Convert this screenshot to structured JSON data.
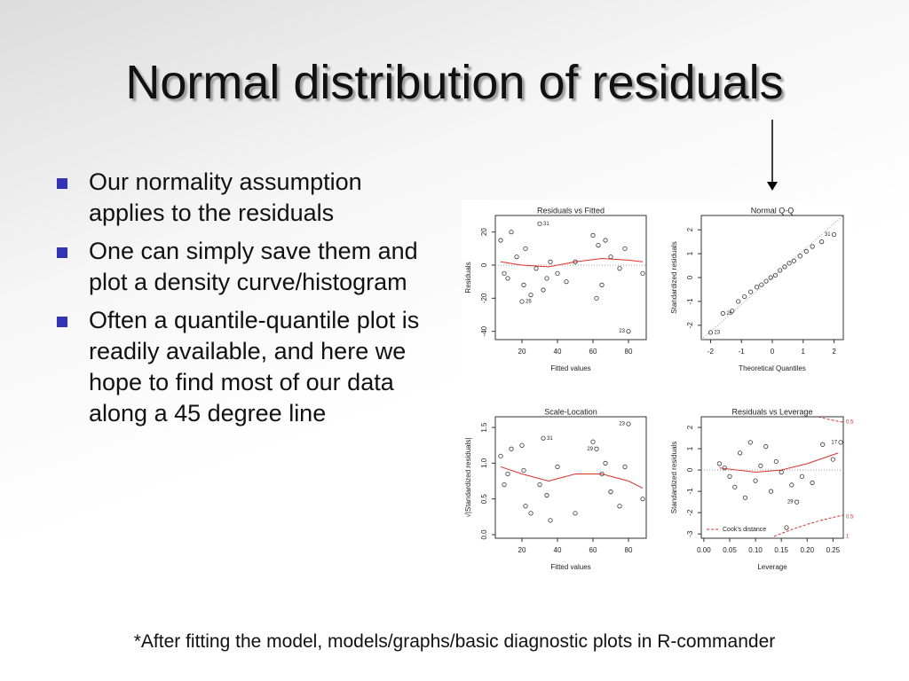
{
  "header": {
    "title": "Normal distribution of residuals"
  },
  "bullets": [
    "Our normality assumption applies to the residuals",
    "One can simply save them and plot a density curve/histogram",
    "Often a quantile-quantile plot is readily available, and here we hope to find most of our data along a 45 degree line"
  ],
  "footnote": "*After fitting the model, models/graphs/basic diagnostic plots in R-commander",
  "chart_data": [
    {
      "type": "scatter",
      "title": "Residuals vs Fitted",
      "xlabel": "Fitted values",
      "ylabel": "Residuals",
      "xlim": [
        5,
        90
      ],
      "xticks": [
        20,
        40,
        60,
        80
      ],
      "ylim": [
        -45,
        30
      ],
      "yticks": [
        -40,
        -20,
        0,
        20
      ],
      "x": [
        8,
        10,
        12,
        14,
        17,
        20,
        21,
        22,
        25,
        28,
        30,
        32,
        34,
        36,
        40,
        45,
        50,
        60,
        62,
        63,
        65,
        67,
        70,
        75,
        78,
        80,
        88
      ],
      "values": [
        15,
        -5,
        -8,
        20,
        5,
        -22,
        -12,
        10,
        -18,
        -2,
        25,
        -15,
        -8,
        2,
        -5,
        -10,
        2,
        18,
        -20,
        12,
        -12,
        15,
        5,
        -2,
        10,
        -40,
        -5
      ],
      "point_labels": [
        null,
        null,
        null,
        null,
        null,
        "26",
        null,
        null,
        null,
        null,
        "31",
        null,
        null,
        null,
        null,
        null,
        null,
        null,
        null,
        null,
        null,
        null,
        null,
        null,
        null,
        "23",
        null
      ],
      "line_x": [
        8,
        20,
        35,
        50,
        65,
        80,
        88
      ],
      "line_values": [
        2,
        0,
        -1,
        2,
        4,
        3,
        2
      ],
      "line_color": "#e0302a",
      "color": "#333333"
    },
    {
      "type": "scatter",
      "title": "Normal Q-Q",
      "xlabel": "Theoretical Quantiles",
      "ylabel": "Standardized residuals",
      "xlim": [
        -2.3,
        2.3
      ],
      "xticks": [
        -2,
        -1,
        0,
        1,
        2
      ],
      "ylim": [
        -2.6,
        2.6
      ],
      "yticks": [
        -2,
        -1,
        0,
        1,
        2
      ],
      "x": [
        -2.0,
        -1.6,
        -1.3,
        -1.1,
        -0.9,
        -0.7,
        -0.5,
        -0.35,
        -0.2,
        -0.05,
        0.1,
        0.25,
        0.4,
        0.55,
        0.7,
        0.9,
        1.1,
        1.3,
        1.6,
        2.0
      ],
      "values": [
        -2.3,
        -1.5,
        -1.4,
        -1.0,
        -0.8,
        -0.6,
        -0.4,
        -0.3,
        -0.15,
        0,
        0.1,
        0.3,
        0.45,
        0.6,
        0.7,
        0.9,
        1.1,
        1.3,
        1.5,
        1.8
      ],
      "point_labels": [
        "23",
        "26",
        null,
        null,
        null,
        null,
        null,
        null,
        null,
        null,
        null,
        null,
        null,
        null,
        null,
        null,
        null,
        null,
        null,
        "31"
      ],
      "line_x": [
        -2.3,
        2.3
      ],
      "line_values": [
        -2.6,
        2.6
      ],
      "line_color": "#999999",
      "color": "#333333"
    },
    {
      "type": "scatter",
      "title": "Scale-Location",
      "xlabel": "Fitted values",
      "ylabel": "√|Standardized residuals|",
      "xlim": [
        5,
        90
      ],
      "xticks": [
        20,
        40,
        60,
        80
      ],
      "ylim": [
        -0.05,
        1.65
      ],
      "yticks": [
        {
          "value": 0,
          "label": "0.0"
        },
        0.5,
        {
          "value": 1,
          "label": "1.0"
        },
        1.5
      ],
      "x": [
        8,
        10,
        12,
        14,
        20,
        21,
        22,
        25,
        30,
        32,
        34,
        36,
        40,
        50,
        60,
        62,
        65,
        67,
        70,
        75,
        78,
        80,
        88
      ],
      "values": [
        1.1,
        0.7,
        0.85,
        1.2,
        1.25,
        0.9,
        0.4,
        0.3,
        0.7,
        1.35,
        0.55,
        0.2,
        0.95,
        0.3,
        1.3,
        1.2,
        0.85,
        1.0,
        0.6,
        0.4,
        0.95,
        1.55,
        0.5
      ],
      "point_labels": [
        null,
        null,
        null,
        null,
        null,
        null,
        null,
        null,
        null,
        "31",
        null,
        null,
        null,
        null,
        null,
        "29",
        null,
        null,
        null,
        null,
        null,
        "23",
        null
      ],
      "line_x": [
        8,
        20,
        35,
        50,
        65,
        80,
        88
      ],
      "line_values": [
        0.95,
        0.85,
        0.75,
        0.85,
        0.85,
        0.75,
        0.65
      ],
      "line_color": "#e0302a",
      "color": "#333333"
    },
    {
      "type": "scatter",
      "title": "Residuals vs Leverage",
      "xlabel": "Leverage",
      "ylabel": "Standardized residuals",
      "xlim": [
        -0.005,
        0.27
      ],
      "xticks": [
        {
          "value": 0,
          "label": "0.00"
        },
        0.05,
        {
          "value": 0.1,
          "label": "0.10"
        },
        0.15,
        {
          "value": 0.2,
          "label": "0.20"
        },
        0.25
      ],
      "ylim": [
        -3.2,
        2.5
      ],
      "yticks": [
        -3,
        -2,
        -1,
        0,
        1,
        2
      ],
      "x": [
        0.03,
        0.04,
        0.05,
        0.06,
        0.07,
        0.08,
        0.09,
        0.1,
        0.11,
        0.12,
        0.13,
        0.14,
        0.15,
        0.17,
        0.18,
        0.19,
        0.21,
        0.23,
        0.25,
        0.265,
        0.16
      ],
      "values": [
        0.3,
        0.1,
        -0.3,
        -0.8,
        0.8,
        -1.3,
        1.3,
        -0.5,
        0.2,
        1.1,
        -1.0,
        0.4,
        -0.1,
        -0.7,
        -1.5,
        -0.3,
        -0.6,
        1.2,
        0.5,
        1.3,
        -2.7
      ],
      "point_labels": [
        null,
        null,
        null,
        null,
        null,
        null,
        null,
        null,
        null,
        null,
        null,
        null,
        null,
        null,
        "29",
        null,
        null,
        null,
        null,
        "17",
        null
      ],
      "line_x": [
        0.03,
        0.1,
        0.15,
        0.2,
        0.26
      ],
      "line_values": [
        0.1,
        -0.1,
        0,
        0.3,
        0.8
      ],
      "line_color": "#e0302a",
      "color": "#333333",
      "legend": "Cook's distance",
      "contour_labels": [
        "0.5",
        "0.5",
        "1"
      ]
    }
  ]
}
